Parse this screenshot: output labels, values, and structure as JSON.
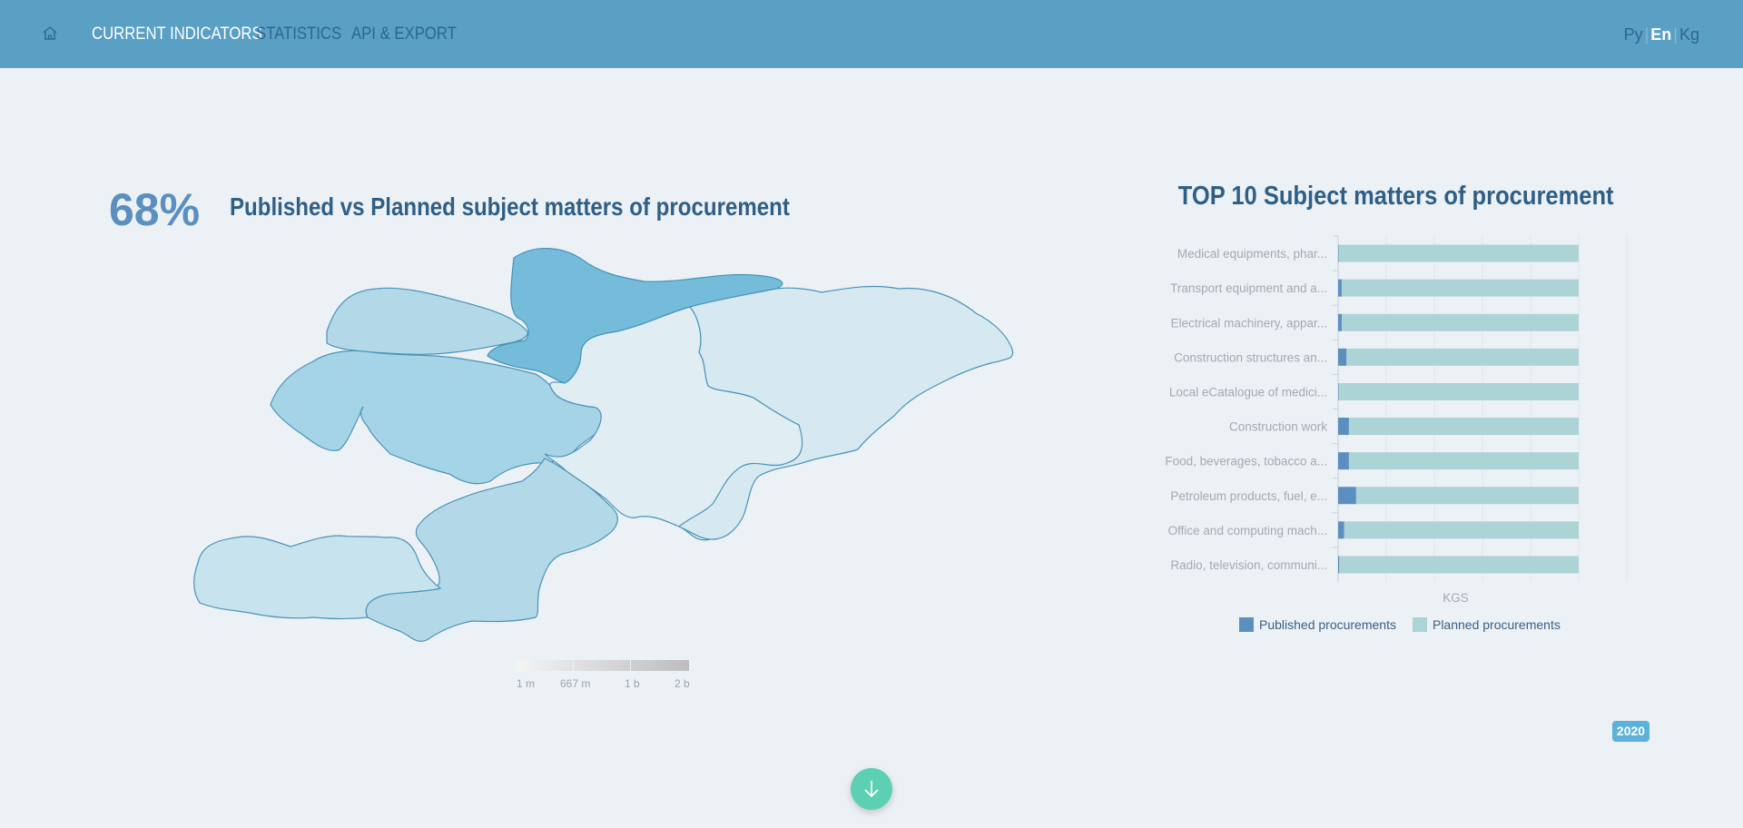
{
  "nav": {
    "items": [
      {
        "label": "CURRENT INDICATORS",
        "active": true
      },
      {
        "label": "STATISTICS",
        "active": false
      },
      {
        "label": "API & EXPORT",
        "active": false
      }
    ],
    "home_icon": "home-icon"
  },
  "languages": [
    {
      "label": "Ру",
      "active": false
    },
    {
      "label": "En",
      "active": true
    },
    {
      "label": "Kg",
      "active": false
    }
  ],
  "map_section": {
    "percent": "68%",
    "title": "Published vs Planned subject matters of procurement",
    "scale_labels": [
      "1 m",
      "667 m",
      "1 b",
      "2 b"
    ],
    "colors": [
      "#5cb2d6",
      "#a5d4e6",
      "#b3d9e8",
      "#c7e3ee",
      "#d6e9f0",
      "#e0edf2",
      "#74bcda"
    ]
  },
  "chart_data": {
    "type": "bar",
    "orientation": "horizontal",
    "stacked": true,
    "title": "TOP 10 Subject matters of procurement",
    "xlabel": "KGS",
    "categories": [
      "Medical equipments, phar...",
      "Transport equipment and a...",
      "Electrical machinery, appar...",
      "Construction structures an...",
      "Local eCatalogue of medici...",
      "Construction work",
      "Food, beverages, tobacco a...",
      "Petroleum products, fuel, e...",
      "Office and computing mach...",
      "Radio, television, communi..."
    ],
    "series": [
      {
        "name": "Published procurements",
        "color": "#5a8fbf",
        "values": [
          0.2,
          1.5,
          1.5,
          3.5,
          0.2,
          4.5,
          4.5,
          7.5,
          2.5,
          0.5
        ]
      },
      {
        "name": "Planned procurements",
        "color": "#acd3d6",
        "values": [
          99.8,
          98.5,
          98.5,
          96.5,
          99.8,
          95.5,
          95.5,
          92.5,
          97.5,
          99.5
        ]
      }
    ],
    "xlim": [
      0,
      100
    ],
    "grid": true,
    "legend": "bottom"
  },
  "year": "2020"
}
